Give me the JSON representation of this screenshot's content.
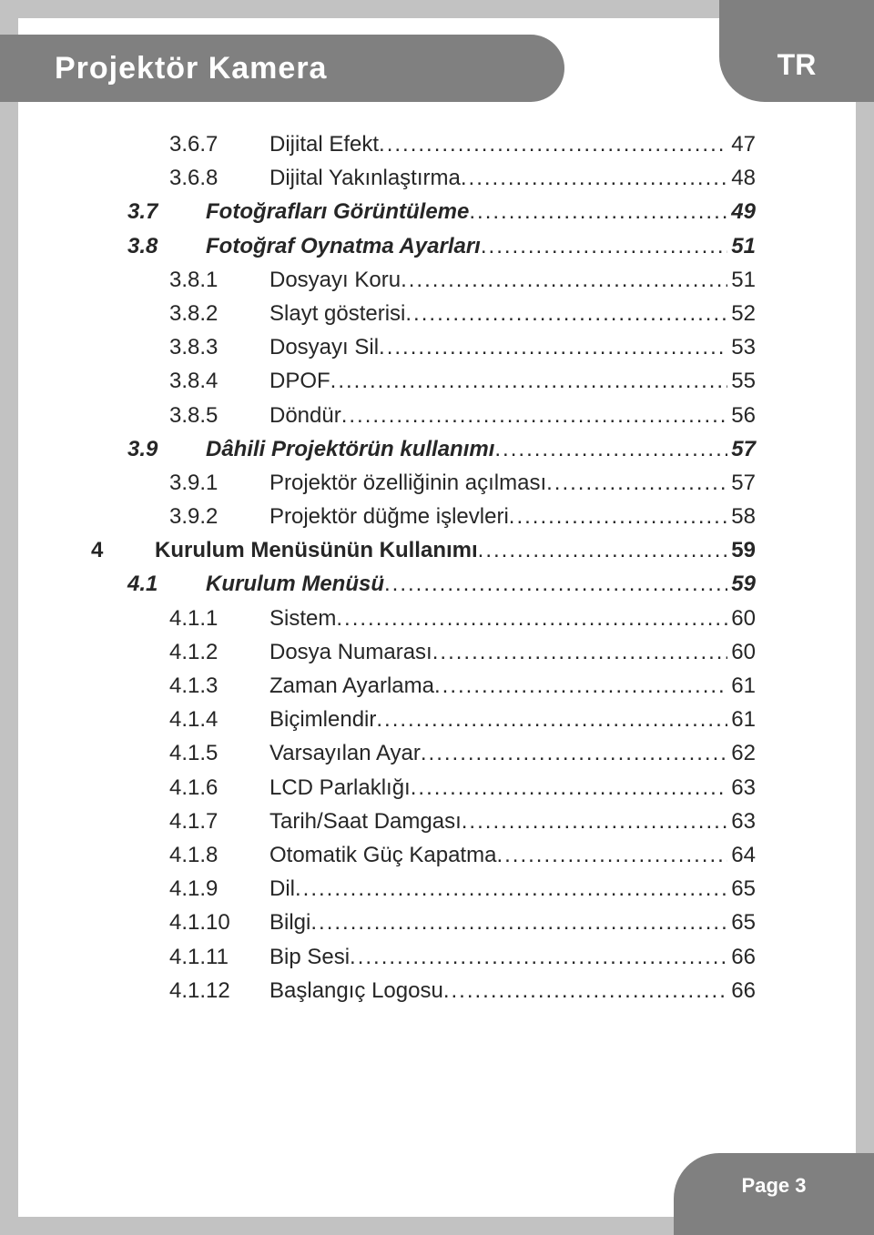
{
  "header": {
    "title": "Projektör Kamera",
    "lang": "TR"
  },
  "footer": {
    "page_label": "Page 3"
  },
  "colors": {
    "page_bg": "#c2c2c2",
    "sheet_bg": "#ffffff",
    "bar_bg": "#808080",
    "bar_text": "#ffffff",
    "text": "#262626"
  },
  "typography": {
    "header_title_pt": 26,
    "toc_pt": 18,
    "page_label_pt": 16
  },
  "toc": [
    {
      "level": 3,
      "num": "3.6.7",
      "title": "Dijital Efekt",
      "page": "47"
    },
    {
      "level": 3,
      "num": "3.6.8",
      "title": "Dijital Yakınlaştırma",
      "page": "48"
    },
    {
      "level": 2,
      "num": "3.7",
      "title": "Fotoğrafları Görüntüleme",
      "page": "49"
    },
    {
      "level": 2,
      "num": "3.8",
      "title": "Fotoğraf Oynatma Ayarları",
      "page": "51"
    },
    {
      "level": 3,
      "num": "3.8.1",
      "title": "Dosyayı Koru",
      "page": "51"
    },
    {
      "level": 3,
      "num": "3.8.2",
      "title": "Slayt gösterisi",
      "page": "52"
    },
    {
      "level": 3,
      "num": "3.8.3",
      "title": "Dosyayı Sil",
      "page": "53"
    },
    {
      "level": 3,
      "num": "3.8.4",
      "title": "DPOF",
      "page": "55"
    },
    {
      "level": 3,
      "num": "3.8.5",
      "title": "Döndür",
      "page": "56"
    },
    {
      "level": 2,
      "num": "3.9",
      "title": "Dâhili Projektörün kullanımı",
      "page": "57"
    },
    {
      "level": 3,
      "num": "3.9.1",
      "title": "Projektör özelliğinin açılması",
      "page": "57"
    },
    {
      "level": 3,
      "num": "3.9.2",
      "title": "Projektör düğme işlevleri",
      "page": "58"
    },
    {
      "level": 1,
      "num": "4",
      "title": "Kurulum Menüsünün Kullanımı",
      "page": "59"
    },
    {
      "level": 2,
      "num": "4.1",
      "title": "Kurulum Menüsü",
      "page": "59"
    },
    {
      "level": 3,
      "num": "4.1.1",
      "title": "Sistem",
      "page": "60"
    },
    {
      "level": 3,
      "num": "4.1.2",
      "title": "Dosya Numarası",
      "page": "60"
    },
    {
      "level": 3,
      "num": "4.1.3",
      "title": "Zaman Ayarlama",
      "page": "61"
    },
    {
      "level": 3,
      "num": "4.1.4",
      "title": "Biçimlendir",
      "page": "61"
    },
    {
      "level": 3,
      "num": "4.1.5",
      "title": "Varsayılan Ayar",
      "page": "62"
    },
    {
      "level": 3,
      "num": "4.1.6",
      "title": "LCD Parlaklığı",
      "page": "63"
    },
    {
      "level": 3,
      "num": "4.1.7",
      "title": "Tarih/Saat Damgası",
      "page": "63"
    },
    {
      "level": 3,
      "num": "4.1.8",
      "title": "Otomatik Güç Kapatma",
      "page": "64"
    },
    {
      "level": 3,
      "num": "4.1.9",
      "title": "Dil",
      "page": "65"
    },
    {
      "level": 3,
      "num": "4.1.10",
      "title": "Bilgi",
      "page": "65"
    },
    {
      "level": 3,
      "num": "4.1.11",
      "title": "Bip Sesi",
      "page": "66"
    },
    {
      "level": 3,
      "num": "4.1.12",
      "title": "Başlangıç Logosu",
      "page": "66"
    }
  ]
}
